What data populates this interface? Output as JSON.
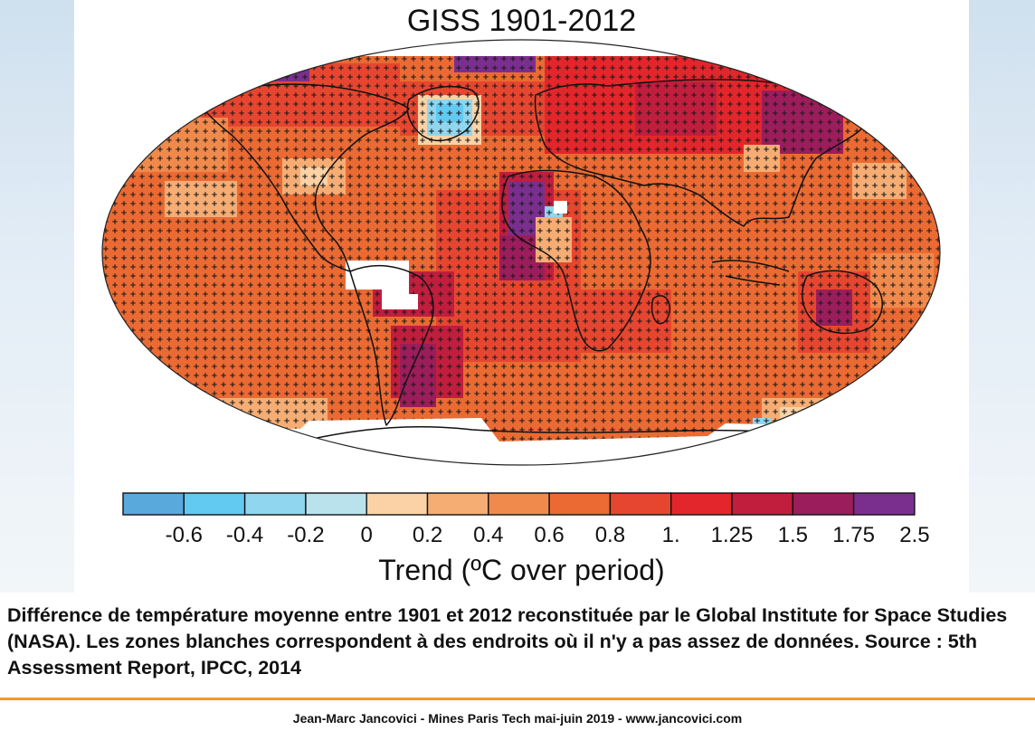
{
  "map": {
    "title": "GISS 1901-2012",
    "colorbar": {
      "colors": [
        "#5aa9dc",
        "#62c9f0",
        "#8fd6ee",
        "#b9e2ec",
        "#fbd2a5",
        "#f6ad74",
        "#f08a4c",
        "#eb6a33",
        "#e64630",
        "#e3262b",
        "#c11e3e",
        "#9c1d5b",
        "#7a2f8e"
      ],
      "tick_labels": [
        "-0.6",
        "-0.4",
        "-0.2",
        "0",
        "0.2",
        "0.4",
        "0.6",
        "0.8",
        "1.",
        "1.25",
        "1.5",
        "1.75",
        "2.5"
      ],
      "label": "Trend (ºC over period)"
    }
  },
  "caption": "Différence de température moyenne entre 1901 et 2012 reconstituée par le Global Institute for Space Studies (NASA). Les zones blanches correspondent à des endroits où il n'y a pas assez de données. Source :  5th Assessment Report, IPCC, 2014",
  "footer": "Jean-Marc Jancovici - Mines Paris Tech mai-juin 2019 - www.jancovici.com"
}
